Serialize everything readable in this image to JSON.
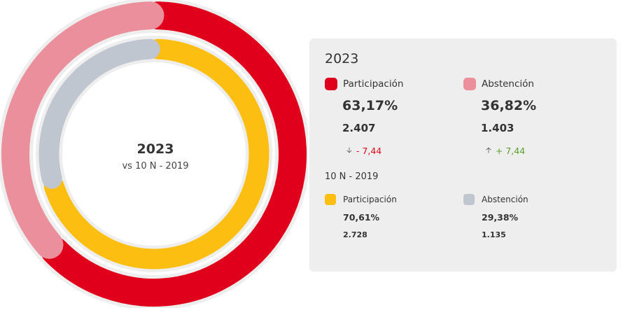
{
  "chart_data": {
    "type": "pie",
    "center": {
      "title": "2023",
      "subtitle": "vs 10 N - 2019"
    },
    "rings": [
      {
        "name": "2023",
        "slices": [
          {
            "label": "Participación",
            "percent": 63.17,
            "votes": "2.407",
            "color": "#e0001b"
          },
          {
            "label": "Abstención",
            "percent": 36.82,
            "votes": "1.403",
            "color": "#eb8f9c"
          }
        ]
      },
      {
        "name": "10 N - 2019",
        "slices": [
          {
            "label": "Participación",
            "percent": 70.61,
            "votes": "2.728",
            "color": "#fcbe10"
          },
          {
            "label": "Abstención",
            "percent": 29.38,
            "votes": "1.135",
            "color": "#c0c6d0"
          }
        ]
      }
    ]
  },
  "panel": {
    "current": {
      "year": "2023",
      "participation": {
        "label": "Participación",
        "percent": "63,17%",
        "votes": "2.407",
        "diff_arrow": "down-arrow-icon",
        "diff": "- 7,44",
        "color": "#e0001b",
        "diff_color": "#e0001b"
      },
      "abstention": {
        "label": "Abstención",
        "percent": "36,82%",
        "votes": "1.403",
        "diff_arrow": "up-arrow-icon",
        "diff": "+ 7,44",
        "color": "#eb8f9c",
        "diff_color": "#5aa02c"
      }
    },
    "previous": {
      "label": "10 N - 2019",
      "participation": {
        "label": "Participación",
        "percent": "70,61%",
        "votes": "2.728",
        "color": "#fcbe10"
      },
      "abstention": {
        "label": "Abstención",
        "percent": "29,38%",
        "votes": "1.135",
        "color": "#c0c6d0"
      }
    }
  }
}
